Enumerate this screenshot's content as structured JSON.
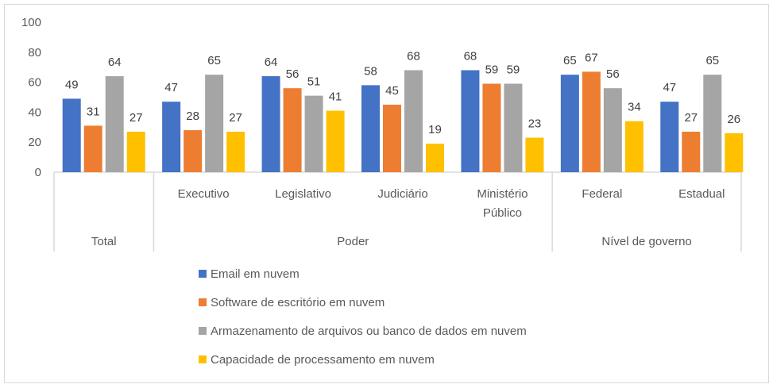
{
  "chart_data": {
    "type": "bar",
    "title": "",
    "xlabel": "",
    "ylabel": "",
    "ylim": [
      0,
      100
    ],
    "yticks": [
      0,
      20,
      40,
      60,
      80,
      100
    ],
    "grid": false,
    "legend_position": "bottom",
    "categories": [
      "Total",
      "Executivo",
      "Legislativo",
      "Judiciário",
      "Ministério Público",
      "Federal",
      "Estadual"
    ],
    "category_lines": [
      [
        ""
      ],
      [
        "Executivo"
      ],
      [
        "Legislativo"
      ],
      [
        "Judiciário"
      ],
      [
        "Ministério",
        "Público"
      ],
      [
        "Federal"
      ],
      [
        "Estadual"
      ]
    ],
    "groups": [
      {
        "label": "Total",
        "categories": [
          0
        ]
      },
      {
        "label": "Poder",
        "categories": [
          1,
          2,
          3,
          4
        ]
      },
      {
        "label": "Nível de governo",
        "categories": [
          5,
          6
        ]
      }
    ],
    "series": [
      {
        "name": "Email em nuvem",
        "color": "#4472c4",
        "values": [
          49,
          47,
          64,
          58,
          68,
          65,
          47
        ]
      },
      {
        "name": "Software de escritório em nuvem",
        "color": "#ed7d31",
        "values": [
          31,
          28,
          56,
          45,
          59,
          67,
          27
        ]
      },
      {
        "name": "Armazenamento de arquivos ou banco de dados em nuvem",
        "color": "#a5a5a5",
        "values": [
          64,
          65,
          51,
          68,
          59,
          56,
          65
        ]
      },
      {
        "name": "Capacidade de processamento em nuvem",
        "color": "#ffc000",
        "values": [
          27,
          27,
          41,
          19,
          23,
          34,
          26
        ]
      }
    ]
  }
}
